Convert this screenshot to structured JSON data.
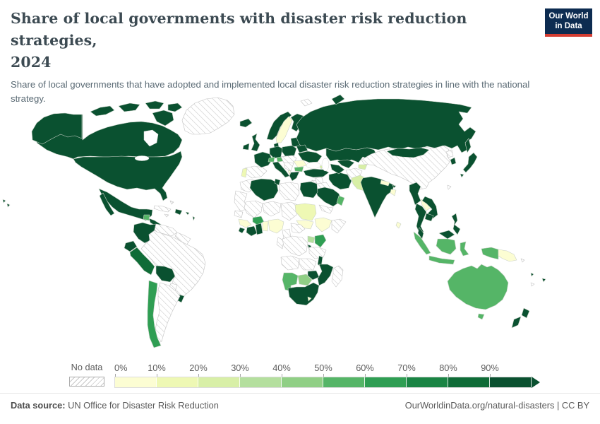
{
  "header": {
    "title_lines": [
      "Share of local governments with disaster risk reduction strategies,",
      "2024"
    ],
    "subtitle": "Share of local governments that have adopted and implemented local disaster risk reduction strategies in line with the national strategy."
  },
  "logo": {
    "line1": "Our World",
    "line2": "in Data",
    "bg_color": "#0d2c51",
    "accent_color": "#d43d32"
  },
  "legend": {
    "no_data_label": "No data",
    "bins": [
      {
        "tick": "0%",
        "range": "0-10%",
        "color": "#fcfdd3"
      },
      {
        "tick": "10%",
        "range": "10-20%",
        "color": "#eef8b4"
      },
      {
        "tick": "20%",
        "range": "20-30%",
        "color": "#d8efa7"
      },
      {
        "tick": "30%",
        "range": "30-40%",
        "color": "#b4df9e"
      },
      {
        "tick": "40%",
        "range": "40-50%",
        "color": "#90cf85"
      },
      {
        "tick": "50%",
        "range": "50-60%",
        "color": "#55b567"
      },
      {
        "tick": "60%",
        "range": "60-70%",
        "color": "#2f9e53"
      },
      {
        "tick": "70%",
        "range": "70-80%",
        "color": "#1a8444"
      },
      {
        "tick": "80%",
        "range": "80-90%",
        "color": "#0f6c37"
      },
      {
        "tick": "90%",
        "range": "90-100%",
        "color": "#0a5130"
      }
    ]
  },
  "footer": {
    "datasource_label": "Data source:",
    "datasource_value": " UN Office for Disaster Risk Reduction",
    "right_text": "OurWorldinData.org/natural-disasters | CC BY"
  },
  "map": {
    "no_data_pattern": "diagonal-hatch",
    "countries": {
      "greenland": {
        "name": "Greenland",
        "bin": null
      },
      "canada": {
        "name": "Canada",
        "bin": 9
      },
      "usa": {
        "name": "United States",
        "bin": 9
      },
      "hawaii": {
        "name": "Hawaii (US)",
        "bin": 9
      },
      "mexico": {
        "name": "Mexico",
        "bin": 9
      },
      "guatemala": {
        "name": "Guatemala",
        "bin": 5
      },
      "central-america": {
        "name": "Central America",
        "bin": 9
      },
      "cuba": {
        "name": "Cuba",
        "bin": null
      },
      "jamaica": {
        "name": "Jamaica",
        "bin": null
      },
      "hispaniola": {
        "name": "Dominican Republic",
        "bin": 9
      },
      "puerto-rico": {
        "name": "Puerto Rico",
        "bin": 9
      },
      "bahamas": {
        "name": "Bahamas",
        "bin": null
      },
      "antilles": {
        "name": "Lesser Antilles",
        "bin": 9
      },
      "colombia": {
        "name": "Colombia",
        "bin": 9
      },
      "venezuela": {
        "name": "Venezuela",
        "bin": null
      },
      "guyanas": {
        "name": "Guyana & Suriname",
        "bin": null
      },
      "ecuador": {
        "name": "Ecuador",
        "bin": 9
      },
      "peru": {
        "name": "Peru",
        "bin": 8
      },
      "bolivia": {
        "name": "Bolivia",
        "bin": 9
      },
      "brazil": {
        "name": "Brazil",
        "bin": null
      },
      "paraguay": {
        "name": "Paraguay",
        "bin": null
      },
      "uruguay": {
        "name": "Uruguay",
        "bin": 9
      },
      "argentina": {
        "name": "Argentina",
        "bin": null
      },
      "chile": {
        "name": "Chile",
        "bin": 6
      },
      "iceland": {
        "name": "Iceland",
        "bin": 9
      },
      "ireland": {
        "name": "Ireland",
        "bin": 9
      },
      "uk": {
        "name": "United Kingdom",
        "bin": 9
      },
      "norway": {
        "name": "Norway",
        "bin": 9
      },
      "sweden": {
        "name": "Sweden",
        "bin": 0
      },
      "finland": {
        "name": "Finland",
        "bin": 9
      },
      "denmark": {
        "name": "Denmark",
        "bin": 9
      },
      "baltics": {
        "name": "Baltic states",
        "bin": 9
      },
      "belarus": {
        "name": "Belarus",
        "bin": 9
      },
      "poland": {
        "name": "Poland",
        "bin": 9
      },
      "germany": {
        "name": "Germany",
        "bin": 9
      },
      "france": {
        "name": "France",
        "bin": 9
      },
      "spain": {
        "name": "Spain",
        "bin": null
      },
      "portugal": {
        "name": "Portugal",
        "bin": 1
      },
      "switzerland": {
        "name": "Switzerland",
        "bin": 5
      },
      "austria": {
        "name": "Austria",
        "bin": 5
      },
      "italy": {
        "name": "Italy",
        "bin": 9
      },
      "czech-hungary": {
        "name": "Czechia / Slovakia / Hungary",
        "bin": null
      },
      "balkans-west": {
        "name": "Western Balkans",
        "bin": null
      },
      "romania": {
        "name": "Romania",
        "bin": 0
      },
      "bulgaria": {
        "name": "Bulgaria",
        "bin": 5
      },
      "greece": {
        "name": "Greece",
        "bin": 9
      },
      "albania": {
        "name": "Albania",
        "bin": 0
      },
      "ukraine": {
        "name": "Ukraine",
        "bin": 9
      },
      "russia": {
        "name": "Russia",
        "bin": 9
      },
      "svalbard": {
        "name": "Svalbard",
        "bin": null
      },
      "turkey": {
        "name": "Turkey",
        "bin": 9
      },
      "georgia": {
        "name": "Georgia",
        "bin": 2
      },
      "syria": {
        "name": "Syria",
        "bin": null
      },
      "iraq": {
        "name": "Iraq",
        "bin": null
      },
      "israel-jordan": {
        "name": "Israel / Jordan",
        "bin": null
      },
      "iran": {
        "name": "Iran",
        "bin": 9
      },
      "saudi-arabia": {
        "name": "Saudi Arabia",
        "bin": 9
      },
      "yemen": {
        "name": "Yemen",
        "bin": null
      },
      "oman": {
        "name": "Oman & UAE",
        "bin": 5
      },
      "kazakhstan": {
        "name": "Kazakhstan",
        "bin": 9
      },
      "uzbekistan": {
        "name": "Uzbekistan",
        "bin": 9
      },
      "turkmenistan": {
        "name": "Turkmenistan",
        "bin": 9
      },
      "kyrgyzstan": {
        "name": "Kyrgyzstan",
        "bin": 0
      },
      "tajikistan": {
        "name": "Tajikistan",
        "bin": 2
      },
      "afghanistan": {
        "name": "Afghanistan",
        "bin": null
      },
      "pakistan": {
        "name": "Pakistan",
        "bin": 2
      },
      "india": {
        "name": "India",
        "bin": 9
      },
      "nepal": {
        "name": "Nepal",
        "bin": 0
      },
      "bhutan": {
        "name": "Bhutan",
        "bin": 9
      },
      "bangladesh": {
        "name": "Bangladesh",
        "bin": 0
      },
      "sri-lanka": {
        "name": "Sri Lanka",
        "bin": 0
      },
      "china": {
        "name": "China",
        "bin": null
      },
      "taiwan": {
        "name": "Taiwan",
        "bin": null
      },
      "mongolia": {
        "name": "Mongolia",
        "bin": 9
      },
      "north-korea": {
        "name": "North Korea",
        "bin": null
      },
      "south-korea": {
        "name": "South Korea",
        "bin": 9
      },
      "japan": {
        "name": "Japan",
        "bin": 9
      },
      "myanmar": {
        "name": "Myanmar",
        "bin": 9
      },
      "laos": {
        "name": "Laos",
        "bin": 0
      },
      "vietnam": {
        "name": "Vietnam",
        "bin": 9
      },
      "thailand": {
        "name": "Thailand",
        "bin": 9
      },
      "cambodia": {
        "name": "Cambodia",
        "bin": 9
      },
      "malaysia": {
        "name": "Malaysia",
        "bin": 9
      },
      "indonesia": {
        "name": "Indonesia",
        "bin": 5
      },
      "philippines": {
        "name": "Philippines",
        "bin": 9
      },
      "papua-new-guinea": {
        "name": "Papua New Guinea",
        "bin": 0
      },
      "solomon-islands": {
        "name": "Solomon Islands",
        "bin": null
      },
      "fiji": {
        "name": "Fiji",
        "bin": 9
      },
      "vanuatu": {
        "name": "Vanuatu",
        "bin": 9
      },
      "new-caledonia": {
        "name": "New Caledonia",
        "bin": null
      },
      "australia": {
        "name": "Australia",
        "bin": 5
      },
      "new-zealand": {
        "name": "New Zealand",
        "bin": 9
      },
      "morocco": {
        "name": "Morocco",
        "bin": null
      },
      "w-sahara-mauritania": {
        "name": "Western Sahara & Mauritania",
        "bin": null
      },
      "algeria": {
        "name": "Algeria",
        "bin": 9
      },
      "tunisia": {
        "name": "Tunisia",
        "bin": 9
      },
      "libya": {
        "name": "Libya",
        "bin": null
      },
      "egypt": {
        "name": "Egypt",
        "bin": 9
      },
      "mali": {
        "name": "Mali",
        "bin": null
      },
      "niger": {
        "name": "Niger",
        "bin": null
      },
      "chad": {
        "name": "Chad",
        "bin": null
      },
      "sudan": {
        "name": "Sudan",
        "bin": 1
      },
      "south-sudan": {
        "name": "South Sudan",
        "bin": 0
      },
      "ethiopia": {
        "name": "Ethiopia",
        "bin": 0
      },
      "somalia": {
        "name": "Somalia",
        "bin": null
      },
      "senegal": {
        "name": "Senegal",
        "bin": null
      },
      "guinea": {
        "name": "Guinea",
        "bin": 0
      },
      "sierra-leone": {
        "name": "Sierra Leone",
        "bin": 9
      },
      "ivory-coast": {
        "name": "Cote d'Ivoire",
        "bin": 9
      },
      "burkina-faso": {
        "name": "Burkina Faso",
        "bin": 6
      },
      "ghana": {
        "name": "Ghana",
        "bin": 9
      },
      "benin-togo": {
        "name": "Benin & Togo",
        "bin": 0
      },
      "nigeria": {
        "name": "Nigeria",
        "bin": 0
      },
      "cameroon": {
        "name": "Cameroon",
        "bin": null
      },
      "car": {
        "name": "Central African Republic",
        "bin": null
      },
      "drc": {
        "name": "DR Congo",
        "bin": null
      },
      "congo-gabon": {
        "name": "Congo & Gabon",
        "bin": null
      },
      "uganda": {
        "name": "Uganda",
        "bin": 3
      },
      "kenya": {
        "name": "Kenya",
        "bin": 6
      },
      "rwanda-burundi": {
        "name": "Rwanda & Burundi",
        "bin": 9
      },
      "tanzania": {
        "name": "Tanzania",
        "bin": null
      },
      "angola": {
        "name": "Angola",
        "bin": null
      },
      "zambia": {
        "name": "Zambia",
        "bin": null
      },
      "malawi": {
        "name": "Malawi",
        "bin": 9
      },
      "mozambique": {
        "name": "Mozambique",
        "bin": 9
      },
      "zimbabwe": {
        "name": "Zimbabwe",
        "bin": 9
      },
      "botswana": {
        "name": "Botswana",
        "bin": 4
      },
      "namibia": {
        "name": "Namibia",
        "bin": 5
      },
      "south-africa": {
        "name": "South Africa",
        "bin": 9
      },
      "lesotho": {
        "name": "Lesotho",
        "bin": 0
      },
      "madagascar": {
        "name": "Madagascar",
        "bin": null
      }
    }
  }
}
